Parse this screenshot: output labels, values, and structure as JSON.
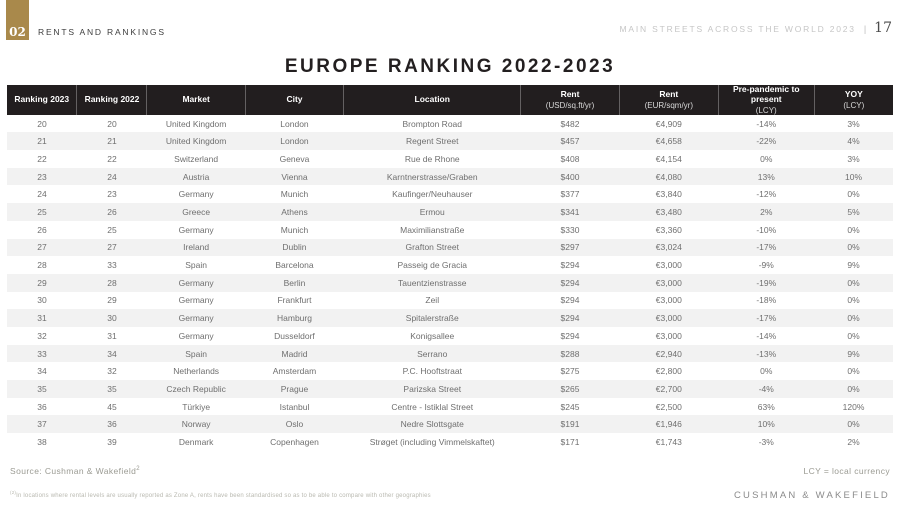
{
  "page": {
    "badge_number": "02",
    "section_label": "RENTS AND RANKINGS",
    "header_right_title": "MAIN STREETS ACROSS THE WORLD 2023",
    "header_divider": "|",
    "page_number": "17",
    "title": "EUROPE RANKING 2022-2023"
  },
  "table": {
    "columns": [
      {
        "label": "Ranking 2023",
        "sub": ""
      },
      {
        "label": "Ranking 2022",
        "sub": ""
      },
      {
        "label": "Market",
        "sub": ""
      },
      {
        "label": "City",
        "sub": ""
      },
      {
        "label": "Location",
        "sub": ""
      },
      {
        "label": "Rent",
        "sub": "(USD/sq.ft/yr)"
      },
      {
        "label": "Rent",
        "sub": "(EUR/sqm/yr)"
      },
      {
        "label": "Pre-pandemic to present",
        "sub": "(LCY)"
      },
      {
        "label": "YOY",
        "sub": "(LCY)"
      }
    ],
    "rows": [
      [
        "20",
        "20",
        "United Kingdom",
        "London",
        "Brompton Road",
        "$482",
        "€4,909",
        "-14%",
        "3%"
      ],
      [
        "21",
        "21",
        "United Kingdom",
        "London",
        "Regent Street",
        "$457",
        "€4,658",
        "-22%",
        "4%"
      ],
      [
        "22",
        "22",
        "Switzerland",
        "Geneva",
        "Rue de Rhone",
        "$408",
        "€4,154",
        "0%",
        "3%"
      ],
      [
        "23",
        "24",
        "Austria",
        "Vienna",
        "Karntnerstrasse/Graben",
        "$400",
        "€4,080",
        "13%",
        "10%"
      ],
      [
        "24",
        "23",
        "Germany",
        "Munich",
        "Kaufinger/Neuhauser",
        "$377",
        "€3,840",
        "-12%",
        "0%"
      ],
      [
        "25",
        "26",
        "Greece",
        "Athens",
        "Ermou",
        "$341",
        "€3,480",
        "2%",
        "5%"
      ],
      [
        "26",
        "25",
        "Germany",
        "Munich",
        "Maximilianstraße",
        "$330",
        "€3,360",
        "-10%",
        "0%"
      ],
      [
        "27",
        "27",
        "Ireland",
        "Dublin",
        "Grafton Street",
        "$297",
        "€3,024",
        "-17%",
        "0%"
      ],
      [
        "28",
        "33",
        "Spain",
        "Barcelona",
        "Passeig de Gracia",
        "$294",
        "€3,000",
        "-9%",
        "9%"
      ],
      [
        "29",
        "28",
        "Germany",
        "Berlin",
        "Tauentzienstrasse",
        "$294",
        "€3,000",
        "-19%",
        "0%"
      ],
      [
        "30",
        "29",
        "Germany",
        "Frankfurt",
        "Zeil",
        "$294",
        "€3,000",
        "-18%",
        "0%"
      ],
      [
        "31",
        "30",
        "Germany",
        "Hamburg",
        "Spitalerstraße",
        "$294",
        "€3,000",
        "-17%",
        "0%"
      ],
      [
        "32",
        "31",
        "Germany",
        "Dusseldorf",
        "Konigsallee",
        "$294",
        "€3,000",
        "-14%",
        "0%"
      ],
      [
        "33",
        "34",
        "Spain",
        "Madrid",
        "Serrano",
        "$288",
        "€2,940",
        "-13%",
        "9%"
      ],
      [
        "34",
        "32",
        "Netherlands",
        "Amsterdam",
        "P.C. Hooftstraat",
        "$275",
        "€2,800",
        "0%",
        "0%"
      ],
      [
        "35",
        "35",
        "Czech Republic",
        "Prague",
        "Parizska Street",
        "$265",
        "€2,700",
        "-4%",
        "0%"
      ],
      [
        "36",
        "45",
        "Türkiye",
        "Istanbul",
        "Centre - Istiklal Street",
        "$245",
        "€2,500",
        "63%",
        "120%"
      ],
      [
        "37",
        "36",
        "Norway",
        "Oslo",
        "Nedre Slottsgate",
        "$191",
        "€1,946",
        "10%",
        "0%"
      ],
      [
        "38",
        "39",
        "Denmark",
        "Copenhagen",
        "Strøget (including Vimmelskaftet)",
        "$171",
        "€1,743",
        "-3%",
        "2%"
      ]
    ]
  },
  "footer": {
    "source": "Source: Cushman & Wakefield",
    "source_superscript": "2",
    "footnote_superscript": "(2)",
    "footnote": "In locations where rental levels are usually reported as Zone A, rents have been standardised so as to be able to compare with other geographies",
    "lcy_note": "LCY = local currency",
    "brand": "CUSHMAN & WAKEFIELD"
  },
  "colors": {
    "accent_gold": "#A9894B",
    "table_header_bg": "#221E1F",
    "row_stripe": "#F2F2F2",
    "body_text": "#6F6F6F"
  }
}
